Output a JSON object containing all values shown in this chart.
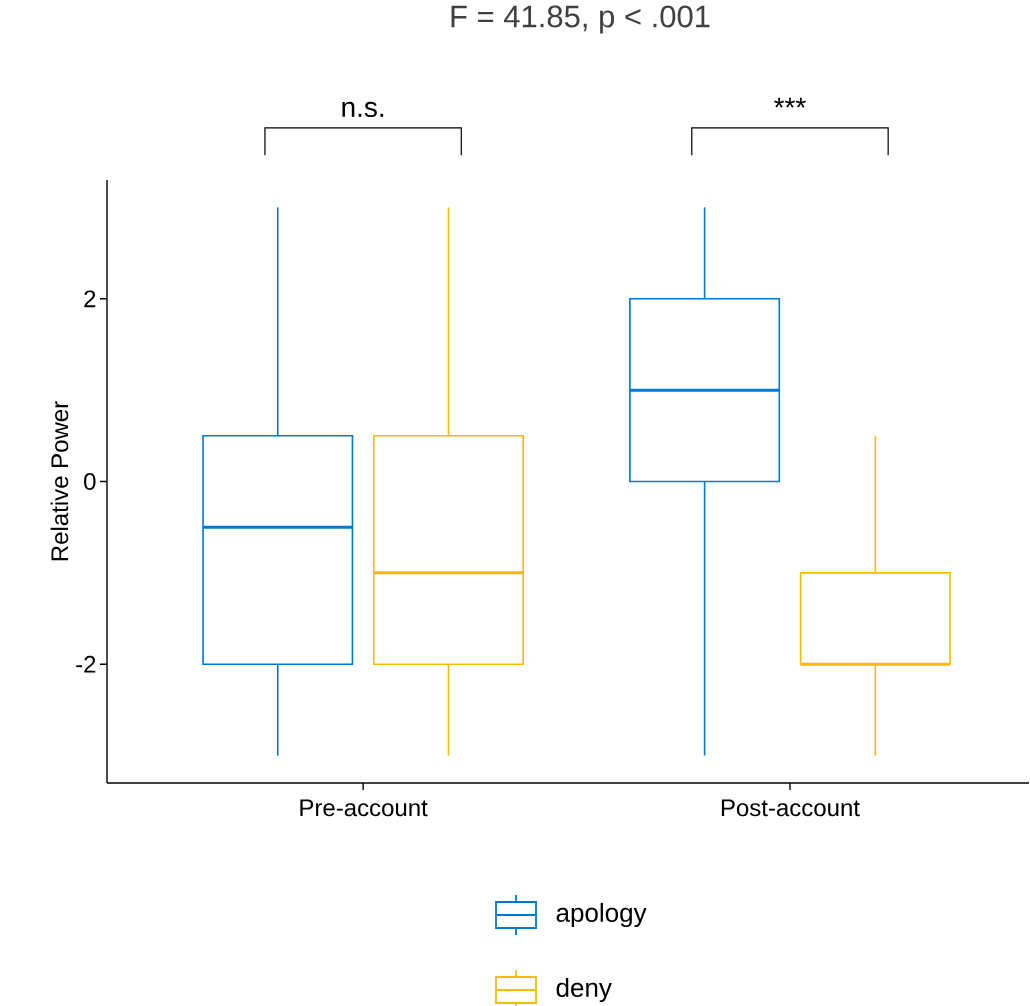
{
  "chart_data": {
    "type": "box",
    "title": "F = 41.85, p < .001",
    "ylabel": "Relative Power",
    "categories": [
      "Pre-account",
      "Post-account"
    ],
    "series": [
      {
        "name": "apology",
        "color": "#0078d4",
        "boxes": [
          {
            "low": -3,
            "q1": -2,
            "median": -0.5,
            "q3": 0.5,
            "high": 3
          },
          {
            "low": -3,
            "q1": 0,
            "median": 1,
            "q3": 2,
            "high": 3
          }
        ]
      },
      {
        "name": "deny",
        "color": "#f5bd00",
        "boxes": [
          {
            "low": -3,
            "q1": -2,
            "median": -1,
            "q3": 0.5,
            "high": 3
          },
          {
            "low": -3,
            "q1": -2,
            "median": -2,
            "q3": -1,
            "high": 0.5
          }
        ]
      }
    ],
    "ylim": [
      -3.3,
      3.3
    ],
    "yticks": [
      -2,
      0,
      2
    ],
    "annotations": [
      "n.s.",
      "***"
    ],
    "legend": "bottom"
  }
}
